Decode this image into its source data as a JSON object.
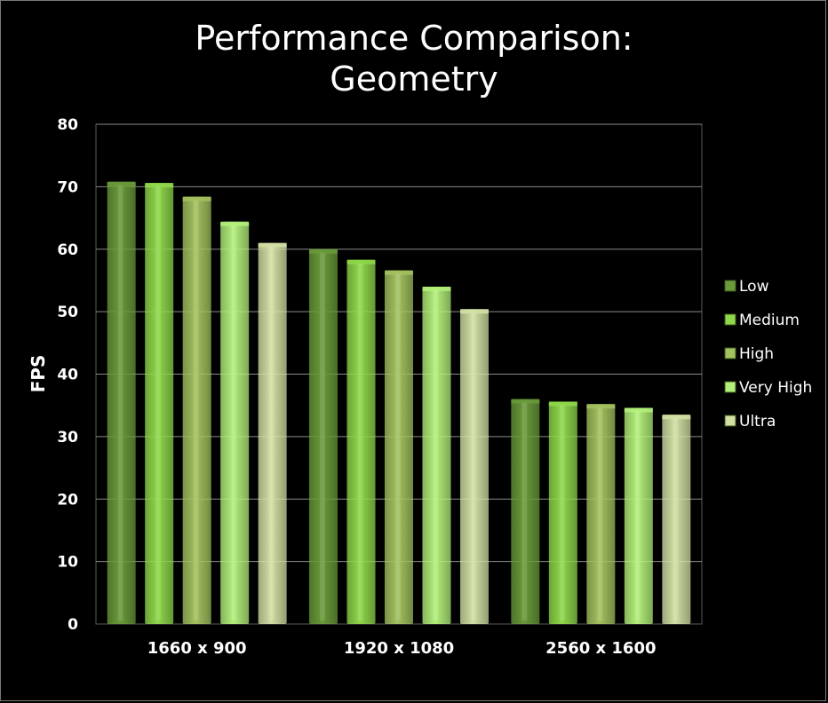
{
  "chart_data": {
    "type": "bar",
    "title_lines": [
      "Performance Comparison:",
      "Geometry"
    ],
    "xlabel": "",
    "ylabel": "FPS",
    "ylim": [
      0,
      80
    ],
    "yticks": [
      0,
      10,
      20,
      30,
      40,
      50,
      60,
      70,
      80
    ],
    "grid": true,
    "legend_position": "right",
    "categories": [
      "1660 x 900",
      "1920 x 1080",
      "2560 x 1600"
    ],
    "series": [
      {
        "name": "Low",
        "values": [
          70.8,
          60.0,
          36.0
        ],
        "color": "#6a9a3a"
      },
      {
        "name": "Medium",
        "values": [
          70.6,
          58.3,
          35.6
        ],
        "color": "#8fd84a"
      },
      {
        "name": "High",
        "values": [
          68.4,
          56.6,
          35.2
        ],
        "color": "#a3c25f"
      },
      {
        "name": "Very High",
        "values": [
          64.4,
          54.0,
          34.6
        ],
        "color": "#b3f07a"
      },
      {
        "name": "Ultra",
        "values": [
          61.0,
          50.4,
          33.5
        ],
        "color": "#d2e0a4"
      }
    ]
  }
}
